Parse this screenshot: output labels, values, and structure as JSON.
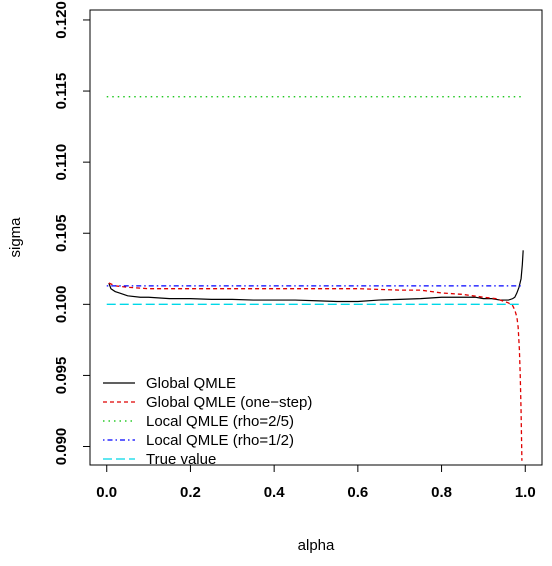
{
  "chart_data": {
    "type": "line",
    "title": "",
    "xlabel": "alpha",
    "ylabel": "sigma",
    "xlim": [
      -0.04,
      1.04
    ],
    "ylim": [
      0.0887,
      0.1207
    ],
    "xticks": [
      0.0,
      0.2,
      0.4,
      0.6,
      0.8,
      1.0
    ],
    "xtick_labels": [
      "0.0",
      "0.2",
      "0.4",
      "0.6",
      "0.8",
      "1.0"
    ],
    "yticks": [
      0.09,
      0.095,
      0.1,
      0.105,
      0.11,
      0.115,
      0.12
    ],
    "ytick_labels": [
      "0.090",
      "0.095",
      "0.100",
      "0.105",
      "0.110",
      "0.115",
      "0.120"
    ],
    "grid": false,
    "legend_position": "bottom-left",
    "series": [
      {
        "name": "Global QMLE",
        "color": "#000000",
        "dash": "solid",
        "x": [
          0.005,
          0.01,
          0.02,
          0.03,
          0.05,
          0.08,
          0.1,
          0.15,
          0.2,
          0.25,
          0.3,
          0.35,
          0.4,
          0.45,
          0.5,
          0.55,
          0.6,
          0.65,
          0.7,
          0.75,
          0.8,
          0.83,
          0.85,
          0.88,
          0.9,
          0.92,
          0.94,
          0.95,
          0.96,
          0.97,
          0.975,
          0.98,
          0.985,
          0.99,
          0.993,
          0.995
        ],
        "y": [
          0.1015,
          0.1011,
          0.1009,
          0.1008,
          0.1006,
          0.1005,
          0.1005,
          0.1004,
          0.1004,
          0.10035,
          0.10035,
          0.1003,
          0.1003,
          0.1003,
          0.10025,
          0.1002,
          0.1002,
          0.1003,
          0.10035,
          0.1004,
          0.1005,
          0.1005,
          0.1005,
          0.1005,
          0.1004,
          0.1004,
          0.1003,
          0.1003,
          0.1003,
          0.1004,
          0.1005,
          0.1008,
          0.1012,
          0.1018,
          0.1028,
          0.1038
        ]
      },
      {
        "name": "Global QMLE (one−step)",
        "color": "#df0000",
        "dash": "dashed",
        "x": [
          0.005,
          0.02,
          0.05,
          0.1,
          0.2,
          0.3,
          0.4,
          0.5,
          0.6,
          0.7,
          0.75,
          0.8,
          0.85,
          0.9,
          0.93,
          0.95,
          0.96,
          0.97,
          0.975,
          0.98,
          0.983,
          0.986,
          0.988,
          0.99,
          0.992
        ],
        "y": [
          0.1015,
          0.1013,
          0.1012,
          0.1011,
          0.1011,
          0.1011,
          0.1011,
          0.1011,
          0.1011,
          0.101,
          0.101,
          0.1008,
          0.1007,
          0.1005,
          0.1004,
          0.1002,
          0.1001,
          0.0999,
          0.0996,
          0.0991,
          0.0984,
          0.0968,
          0.095,
          0.0925,
          0.089
        ]
      },
      {
        "name": "Local QMLE (rho=2/5)",
        "color": "#00c000",
        "dash": "dotted",
        "x": [
          0.0,
          0.99
        ],
        "y": [
          0.1146,
          0.1146
        ]
      },
      {
        "name": "Local QMLE (rho=1/2)",
        "color": "#0000ff",
        "dash": "dotdash",
        "x": [
          0.0,
          0.99
        ],
        "y": [
          0.1013,
          0.1013
        ]
      },
      {
        "name": "True value",
        "color": "#00d8e8",
        "dash": "longdash",
        "x": [
          0.0,
          0.99
        ],
        "y": [
          0.1,
          0.1
        ]
      }
    ]
  }
}
